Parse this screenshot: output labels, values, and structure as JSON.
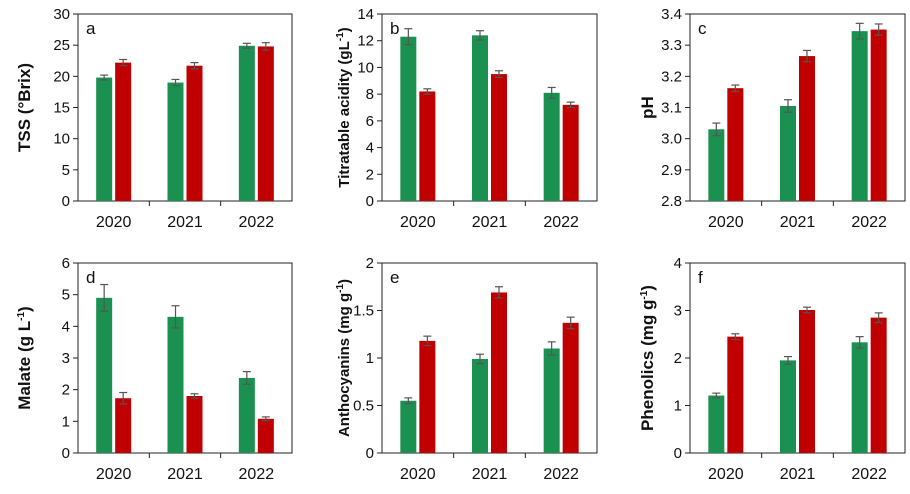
{
  "colors": {
    "series_a": "#1a9150",
    "series_b": "#c00000",
    "error_bar": "#555555",
    "axis": "#222222"
  },
  "chart_data": [
    {
      "panel": "a",
      "type": "bar",
      "categories": [
        "2020",
        "2021",
        "2022"
      ],
      "ylabel": "TSS (°Brix)",
      "ylim": [
        0,
        30
      ],
      "yticks": [
        "0",
        "5",
        "10",
        "15",
        "20",
        "25",
        "30"
      ],
      "series": [
        {
          "values": [
            19.8,
            19.0,
            24.9
          ],
          "errors": [
            0.4,
            0.5,
            0.4
          ]
        },
        {
          "values": [
            22.2,
            21.7,
            24.8
          ],
          "errors": [
            0.5,
            0.5,
            0.6
          ]
        }
      ]
    },
    {
      "panel": "b",
      "type": "bar",
      "categories": [
        "2020",
        "2021",
        "2022"
      ],
      "ylabel": "Titratable acidity (gL",
      "ylabel_sup": "-1",
      "ylabel_tail": ")",
      "ylim": [
        0,
        14
      ],
      "yticks": [
        "0",
        "2",
        "4",
        "6",
        "8",
        "10",
        "12",
        "14"
      ],
      "series": [
        {
          "values": [
            12.3,
            12.4,
            8.1
          ],
          "errors": [
            0.6,
            0.35,
            0.4
          ]
        },
        {
          "values": [
            8.2,
            9.5,
            7.2
          ],
          "errors": [
            0.2,
            0.25,
            0.2
          ]
        }
      ]
    },
    {
      "panel": "c",
      "type": "bar",
      "categories": [
        "2020",
        "2021",
        "2022"
      ],
      "ylabel": "pH",
      "ylim": [
        2.8,
        3.4
      ],
      "yticks": [
        "2.8",
        "2.9",
        "3.0",
        "3.1",
        "3.2",
        "3.3",
        "3.4"
      ],
      "series": [
        {
          "values": [
            3.03,
            3.105,
            3.345
          ],
          "errors": [
            0.02,
            0.02,
            0.025
          ]
        },
        {
          "values": [
            3.162,
            3.265,
            3.35
          ],
          "errors": [
            0.01,
            0.018,
            0.018
          ]
        }
      ]
    },
    {
      "panel": "d",
      "type": "bar",
      "categories": [
        "2020",
        "2021",
        "2022"
      ],
      "ylabel": "Malate (g L",
      "ylabel_sup": "-1",
      "ylabel_tail": ")",
      "ylim": [
        0,
        6
      ],
      "yticks": [
        "0",
        "1",
        "2",
        "3",
        "4",
        "5",
        "6"
      ],
      "series": [
        {
          "values": [
            4.9,
            4.3,
            2.37
          ],
          "errors": [
            0.42,
            0.35,
            0.2
          ]
        },
        {
          "values": [
            1.73,
            1.8,
            1.08
          ],
          "errors": [
            0.18,
            0.07,
            0.06
          ]
        }
      ]
    },
    {
      "panel": "e",
      "type": "bar",
      "categories": [
        "2020",
        "2021",
        "2022"
      ],
      "ylabel": "Anthocyanins (mg g",
      "ylabel_sup": "-1",
      "ylabel_tail": ")",
      "ylim": [
        0,
        2
      ],
      "yticks": [
        "0",
        "0.5",
        "1",
        "1.5",
        "2"
      ],
      "series": [
        {
          "values": [
            0.55,
            0.99,
            1.1
          ],
          "errors": [
            0.03,
            0.05,
            0.07
          ]
        },
        {
          "values": [
            1.18,
            1.69,
            1.37
          ],
          "errors": [
            0.05,
            0.06,
            0.06
          ]
        }
      ]
    },
    {
      "panel": "f",
      "type": "bar",
      "categories": [
        "2020",
        "2021",
        "2022"
      ],
      "ylabel": "Phenolics (mg g",
      "ylabel_sup": "-1",
      "ylabel_tail": ")",
      "ylim": [
        0,
        4
      ],
      "yticks": [
        "0",
        "1",
        "2",
        "3",
        "4"
      ],
      "series": [
        {
          "values": [
            1.21,
            1.95,
            2.33
          ],
          "errors": [
            0.05,
            0.08,
            0.12
          ]
        },
        {
          "values": [
            2.45,
            3.01,
            2.85
          ],
          "errors": [
            0.06,
            0.06,
            0.1
          ]
        }
      ]
    }
  ]
}
